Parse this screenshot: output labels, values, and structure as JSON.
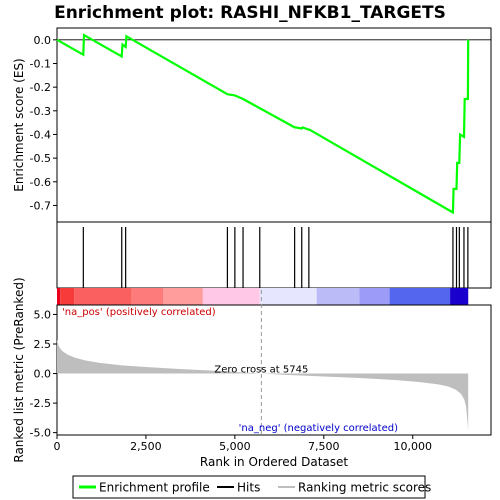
{
  "chart_data": {
    "type": "line",
    "title": "Enrichment plot: RASHI_NFKB1_TARGETS",
    "enrichment_panel": {
      "ylabel": "Enrichment score (ES)",
      "ylim": [
        -0.77,
        0.05
      ],
      "yticks": [
        0.0,
        -0.1,
        -0.2,
        -0.3,
        -0.4,
        -0.5,
        -0.6,
        -0.7
      ],
      "ytick_labels": [
        "0.0",
        "-0.1",
        "-0.2",
        "-0.3",
        "-0.4",
        "-0.5",
        "-0.6",
        "-0.7"
      ],
      "series": [
        {
          "name": "Enrichment profile",
          "color": "#00ff00",
          "x": [
            0,
            740,
            760,
            1820,
            1840,
            1930,
            1950,
            4790,
            5000,
            5230,
            6680,
            6700,
            6880,
            6900,
            7080,
            7100,
            11130,
            11150,
            11230,
            11250,
            11310,
            11330,
            11440,
            11460,
            11550,
            11560
          ],
          "y": [
            0.0,
            -0.063,
            0.02,
            -0.07,
            -0.02,
            -0.03,
            0.015,
            -0.23,
            -0.235,
            -0.25,
            -0.37,
            -0.37,
            -0.375,
            -0.37,
            -0.38,
            -0.38,
            -0.73,
            -0.63,
            -0.63,
            -0.52,
            -0.52,
            -0.4,
            -0.41,
            -0.25,
            -0.25,
            0.0
          ]
        }
      ]
    },
    "hits": [
      740,
      1820,
      1930,
      4790,
      5000,
      5230,
      5700,
      6680,
      6880,
      7080,
      11130,
      11230,
      11310,
      11440,
      11550
    ],
    "ranked_panel": {
      "ylabel": "Ranked list metric (PreRanked)",
      "xlabel": "Rank in Ordered Dataset",
      "ylim": [
        -5.2,
        5.8
      ],
      "yticks": [
        5.0,
        2.5,
        0.0,
        -2.5,
        -5.0
      ],
      "ytick_labels": [
        "5.0",
        "2.5",
        "0.0",
        "-2.5",
        "-5.0"
      ],
      "xlim": [
        0,
        12200
      ],
      "xticks": [
        0,
        2500,
        5000,
        7500,
        10000
      ],
      "xtick_labels": [
        "0",
        "2,500",
        "5,000",
        "7,500",
        "10,000"
      ],
      "metric_x": [
        0,
        50,
        150,
        300,
        500,
        800,
        1200,
        1800,
        2500,
        3500,
        4500,
        5200,
        5745,
        6500,
        7500,
        8500,
        9500,
        10200,
        10700,
        11000,
        11200,
        11350,
        11450,
        11500,
        11530,
        11560
      ],
      "metric_y": [
        2.9,
        2.3,
        1.9,
        1.6,
        1.35,
        1.1,
        0.9,
        0.7,
        0.55,
        0.38,
        0.22,
        0.1,
        0.0,
        -0.12,
        -0.25,
        -0.38,
        -0.55,
        -0.72,
        -0.9,
        -1.1,
        -1.35,
        -1.7,
        -2.2,
        -2.8,
        -3.8,
        -4.8
      ],
      "zero_cross_label": "Zero cross at 5745",
      "zero_cross_x": 5745,
      "pos_label": "'na_pos' (positively correlated)",
      "neg_label": "'na_neg' (negatively correlated)",
      "fill_color": "#bebebe"
    },
    "heat_bar_colors": [
      "#e8001e",
      "#f73a3a",
      "#fb6060",
      "#fe7b7b",
      "#ff9c9c",
      "#ffc8e6",
      "#e6e6ff",
      "#bbbbf8",
      "#9c9cf8",
      "#5566ee",
      "#1a00cc"
    ],
    "heat_bar_breaks": [
      0,
      90,
      480,
      2100,
      2980,
      4100,
      5700,
      7300,
      8500,
      9350,
      11050,
      11560
    ],
    "legend": {
      "placement": "bottom",
      "items": [
        {
          "label": "Enrichment profile",
          "color": "#00ff00",
          "kind": "line"
        },
        {
          "label": "Hits",
          "color": "#000000",
          "kind": "line"
        },
        {
          "label": "Ranking metric scores",
          "color": "#bebebe",
          "kind": "line"
        }
      ]
    }
  }
}
